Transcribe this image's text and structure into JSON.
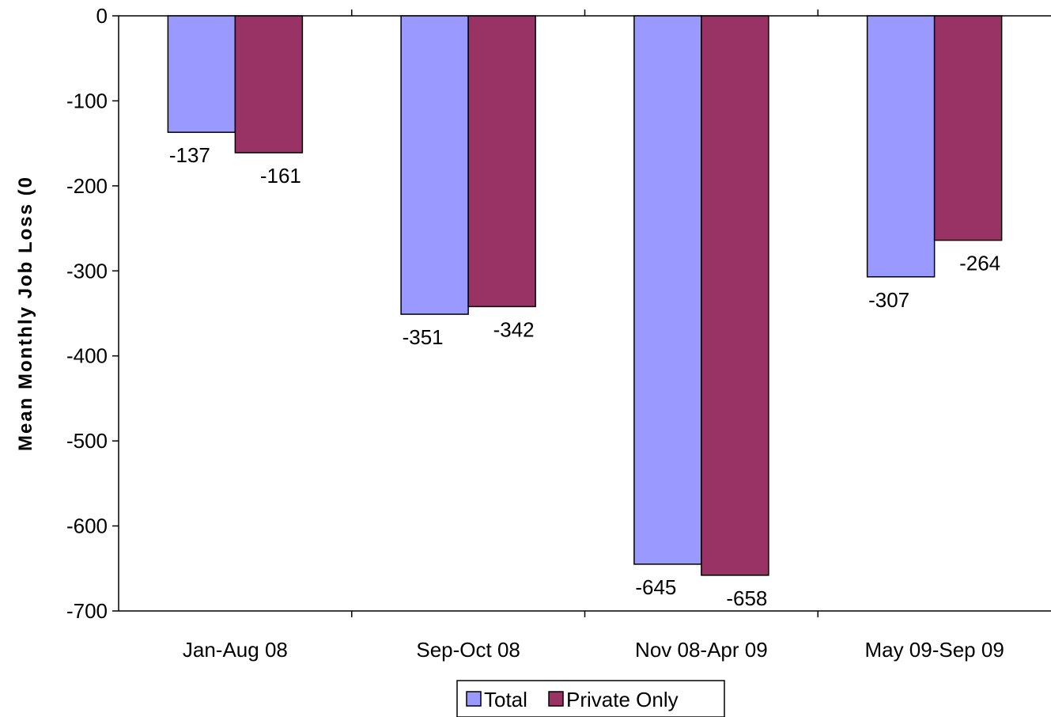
{
  "chart_data": {
    "type": "bar",
    "title": "",
    "xlabel": "",
    "ylabel": "Mean Monthly Job Loss (0",
    "ylim": [
      -700,
      0
    ],
    "yticks": [
      0,
      -100,
      -200,
      -300,
      -400,
      -500,
      -600,
      -700
    ],
    "categories": [
      "Jan-Aug 08",
      "Sep-Oct 08",
      "Nov 08-Apr 09",
      "May 09-Sep 09"
    ],
    "series": [
      {
        "name": "Total",
        "values": [
          -137,
          -351,
          -645,
          -307
        ],
        "color": "#9999ff"
      },
      {
        "name": "Private Only",
        "values": [
          -161,
          -342,
          -658,
          -264
        ],
        "color": "#993366"
      }
    ],
    "data_labels": true,
    "grid": false,
    "legend_position": "bottom-center"
  }
}
